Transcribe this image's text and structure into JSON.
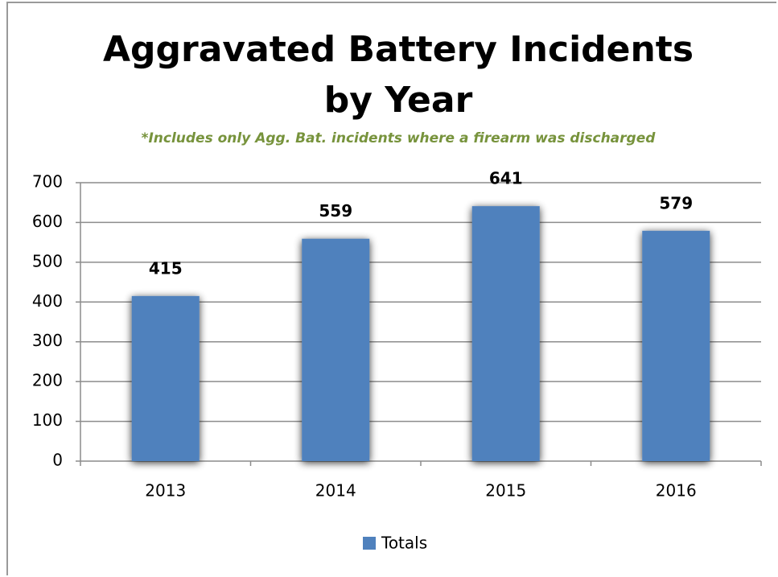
{
  "chart_data": {
    "type": "bar",
    "title": "Aggravated Battery Incidents by Year",
    "subtitle": "*Includes only Agg. Bat. incidents where a firearm was discharged",
    "categories": [
      "2013",
      "2014",
      "2015",
      "2016"
    ],
    "series": [
      {
        "name": "Totals",
        "color": "#4f81bd",
        "values": [
          415,
          559,
          641,
          579
        ]
      }
    ],
    "ylim": [
      0,
      700
    ],
    "yticks": [
      0,
      100,
      200,
      300,
      400,
      500,
      600,
      700
    ],
    "grid": true,
    "legend": "bottom"
  }
}
